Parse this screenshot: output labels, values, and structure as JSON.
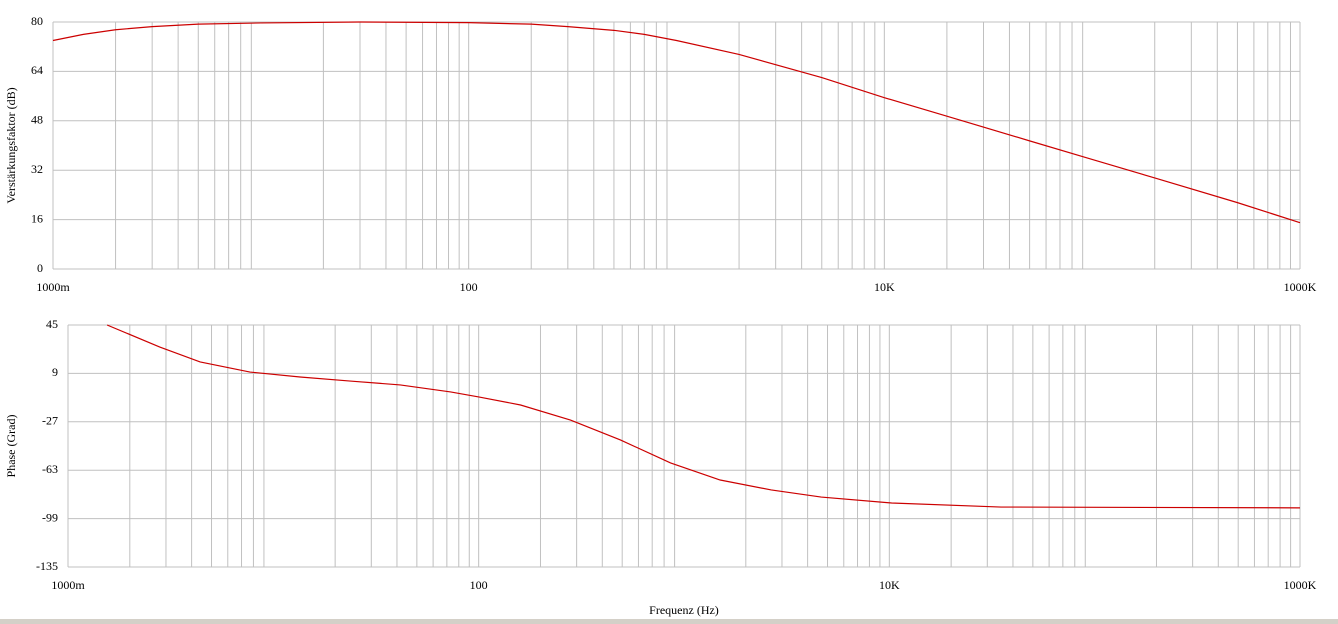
{
  "chart_data": [
    {
      "type": "line",
      "ylabel": "Verstärkungsfaktor (dB)",
      "log_x": true,
      "grid": true,
      "color": "#cc0000",
      "xlim": [
        1,
        1000000
      ],
      "xticks": [
        {
          "value": 1,
          "label": "1000m"
        },
        100,
        {
          "value": 10000,
          "label": "10K"
        },
        {
          "value": 1000000,
          "label": "1000K"
        }
      ],
      "ylim": [
        0,
        80
      ],
      "yticks": [
        0,
        16,
        32,
        48,
        64,
        80
      ],
      "x": [
        1,
        1.4,
        2,
        3,
        5,
        10,
        30,
        100,
        200,
        300,
        500,
        700,
        1000,
        2000,
        5000,
        10000,
        20000,
        50000,
        100000,
        200000,
        500000,
        1000000
      ],
      "values": [
        74,
        76,
        77.5,
        78.5,
        79.3,
        79.7,
        80,
        79.8,
        79.3,
        78.5,
        77.3,
        76,
        74,
        69.5,
        62,
        55.5,
        49.5,
        41.5,
        35.5,
        29.5,
        21.5,
        15
      ]
    },
    {
      "type": "line",
      "ylabel": "Phase (Grad)",
      "xlabel": "Frequenz (Hz)",
      "log_x": true,
      "grid": true,
      "color": "#cc0000",
      "xlim": [
        1,
        1000000
      ],
      "xticks": [
        {
          "value": 1,
          "label": "1000m"
        },
        100,
        {
          "value": 10000,
          "label": "10K"
        },
        {
          "value": 1000000,
          "label": "1000K"
        }
      ],
      "ylim": [
        -135,
        45
      ],
      "yticks": [
        -135,
        -99,
        -63,
        -27,
        9,
        45
      ],
      "x": [
        1.55,
        2.8,
        4.4,
        7.7,
        13.5,
        23.7,
        41.5,
        73,
        100,
        160,
        280,
        490,
        860,
        1500,
        2660,
        4660,
        10260,
        35000,
        1000000
      ],
      "values": [
        45,
        28.6,
        17.5,
        10,
        6.3,
        3.3,
        0.4,
        -4.8,
        -8.5,
        -14.5,
        -25.7,
        -40.5,
        -57.6,
        -70.3,
        -77.7,
        -83,
        -87.4,
        -90.4,
        -91
      ]
    }
  ]
}
